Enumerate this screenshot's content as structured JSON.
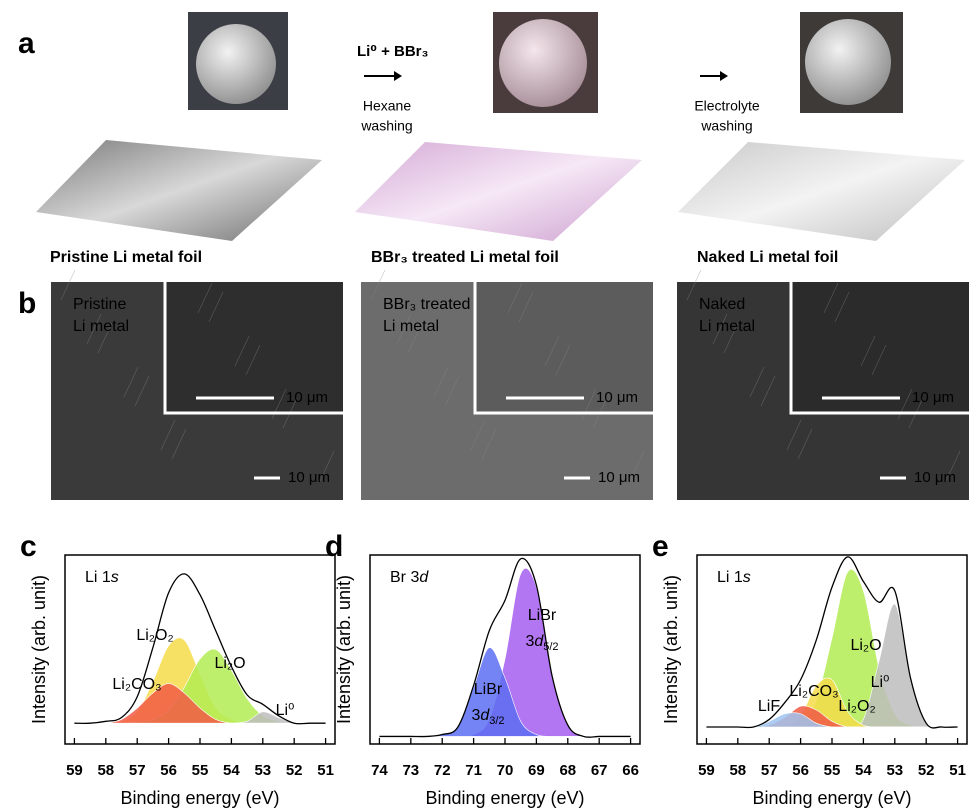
{
  "panel_a": {
    "label": "a",
    "reagent": "Li⁰ + BBr₃",
    "steps": [
      [
        "Hexane",
        "washing"
      ],
      [
        "Electrolyte",
        "washing"
      ]
    ],
    "captions": [
      "Pristine Li metal foil",
      "BBr₃ treated Li metal foil",
      "Naked Li metal foil"
    ]
  },
  "panel_b": {
    "label": "b",
    "images": [
      {
        "label": [
          "Pristine",
          "Li metal"
        ],
        "inset_scale_bar": "10 μm",
        "scale_bar": "10 μm"
      },
      {
        "label": [
          "BBr₃ treated",
          "Li metal"
        ],
        "inset_scale_bar": "10 μm",
        "scale_bar": "10 μm"
      },
      {
        "label": [
          "Naked",
          "Li metal"
        ],
        "inset_scale_bar": "10 μm",
        "scale_bar": "10 μm"
      }
    ]
  },
  "chart_data": [
    {
      "type": "area",
      "panel_label": "c",
      "title": [
        "Li 1",
        "s"
      ],
      "xlabel": "Binding energy (eV)",
      "ylabel": "Intensity (arb. unit)",
      "xlim": [
        59.3,
        50.7
      ],
      "xticks": [
        59,
        58,
        57,
        56,
        55,
        54,
        53,
        52,
        51
      ],
      "ylim": [
        0,
        1
      ],
      "baseline": 0.11,
      "x": [
        59,
        58.5,
        58,
        57.5,
        57,
        56.5,
        56,
        55.5,
        55,
        54.5,
        54,
        53.5,
        53,
        52.5,
        52,
        51.5,
        51
      ],
      "series": [
        {
          "name": "Li₂O₂",
          "color": "#f5dc4a",
          "fill": true,
          "values": [
            0.11,
            0.11,
            0.11,
            0.12,
            0.17,
            0.33,
            0.52,
            0.55,
            0.37,
            0.19,
            0.13,
            0.11,
            0.11,
            0.11,
            0.11,
            0.11,
            0.11
          ]
        },
        {
          "name": "Li₂O",
          "color": "#b2ec52",
          "fill": true,
          "values": [
            0.11,
            0.11,
            0.11,
            0.11,
            0.12,
            0.13,
            0.18,
            0.3,
            0.45,
            0.5,
            0.39,
            0.24,
            0.15,
            0.12,
            0.11,
            0.11,
            0.11
          ]
        },
        {
          "name": "Li⁰",
          "color": "#bdbdbd",
          "fill": true,
          "values": [
            0.11,
            0.11,
            0.11,
            0.11,
            0.11,
            0.11,
            0.11,
            0.11,
            0.11,
            0.11,
            0.11,
            0.12,
            0.17,
            0.14,
            0.11,
            0.11,
            0.11
          ]
        },
        {
          "name": "Li₂CO₃",
          "color": "#f15a45",
          "fill": true,
          "values": [
            0.11,
            0.11,
            0.11,
            0.13,
            0.19,
            0.27,
            0.32,
            0.27,
            0.19,
            0.13,
            0.11,
            0.11,
            0.11,
            0.11,
            0.11,
            0.11,
            0.11
          ]
        },
        {
          "color": "#000000",
          "fill": false,
          "values": [
            0.11,
            0.11,
            0.12,
            0.14,
            0.25,
            0.51,
            0.8,
            0.9,
            0.79,
            0.6,
            0.41,
            0.26,
            0.21,
            0.15,
            0.11,
            0.11,
            0.11
          ]
        }
      ]
    },
    {
      "type": "area",
      "panel_label": "d",
      "title": [
        "Br 3",
        "d"
      ],
      "xlabel": "Binding energy (eV)",
      "ylabel": "Intensity (arb. unit)",
      "xlim": [
        74.3,
        65.7
      ],
      "xticks": [
        74,
        73,
        72,
        71,
        70,
        69,
        68,
        67,
        66
      ],
      "ylim": [
        0,
        1
      ],
      "baseline": 0.04,
      "x": [
        74,
        73.5,
        73,
        72.5,
        72,
        71.5,
        71,
        70.5,
        70,
        69.5,
        69,
        68.5,
        68,
        67.5,
        67,
        66.5,
        66
      ],
      "series": [
        {
          "name": [
            "LiBr",
            "3",
            "d",
            "5/2"
          ],
          "color": "#a45ef0",
          "fill": true,
          "values": [
            0.04,
            0.04,
            0.04,
            0.04,
            0.04,
            0.04,
            0.05,
            0.13,
            0.45,
            0.9,
            0.83,
            0.36,
            0.1,
            0.04,
            0.04,
            0.04,
            0.04
          ]
        },
        {
          "name": [
            "LiBr",
            "3",
            "d",
            "3/2"
          ],
          "color": "#5d6ff2",
          "fill": true,
          "values": [
            0.04,
            0.04,
            0.04,
            0.04,
            0.05,
            0.09,
            0.3,
            0.51,
            0.35,
            0.12,
            0.05,
            0.04,
            0.04,
            0.04,
            0.04,
            0.04,
            0.04
          ]
        },
        {
          "color": "#000000",
          "fill": false,
          "values": [
            0.04,
            0.04,
            0.04,
            0.04,
            0.05,
            0.09,
            0.31,
            0.6,
            0.76,
            0.98,
            0.84,
            0.36,
            0.1,
            0.04,
            0.04,
            0.04,
            0.04
          ]
        }
      ]
    },
    {
      "type": "area",
      "panel_label": "e",
      "title": [
        "Li 1",
        "s"
      ],
      "xlabel": "Binding energy (eV)",
      "ylabel": "Intensity (arb. unit)",
      "xlim": [
        59.3,
        50.7
      ],
      "xticks": [
        59,
        58,
        57,
        56,
        55,
        54,
        53,
        52,
        51
      ],
      "ylim": [
        0,
        1
      ],
      "baseline": 0.09,
      "x": [
        59,
        58.5,
        58,
        57.5,
        57,
        56.5,
        56,
        55.5,
        55,
        54.5,
        54,
        53.5,
        53,
        52.5,
        52,
        51.5,
        51
      ],
      "series": [
        {
          "name": "Li₂O",
          "color": "#b2ec52",
          "fill": true,
          "values": [
            0.09,
            0.09,
            0.09,
            0.09,
            0.09,
            0.09,
            0.11,
            0.23,
            0.56,
            0.91,
            0.81,
            0.4,
            0.16,
            0.1,
            0.09,
            0.09,
            0.09
          ]
        },
        {
          "name": "Li⁰",
          "color": "#bdbdbd",
          "fill": true,
          "values": [
            0.09,
            0.09,
            0.09,
            0.09,
            0.09,
            0.09,
            0.09,
            0.09,
            0.09,
            0.09,
            0.13,
            0.44,
            0.74,
            0.35,
            0.11,
            0.09,
            0.09
          ]
        },
        {
          "name": "Li₂O₂",
          "color": "#f5dc4a",
          "fill": true,
          "values": [
            0.09,
            0.09,
            0.09,
            0.09,
            0.09,
            0.09,
            0.15,
            0.31,
            0.34,
            0.17,
            0.1,
            0.09,
            0.09,
            0.09,
            0.09,
            0.09,
            0.09
          ]
        },
        {
          "name": "Li₂CO₃",
          "color": "#f15a45",
          "fill": true,
          "values": [
            0.09,
            0.09,
            0.09,
            0.09,
            0.1,
            0.14,
            0.2,
            0.18,
            0.12,
            0.09,
            0.09,
            0.09,
            0.09,
            0.09,
            0.09,
            0.09,
            0.09
          ]
        },
        {
          "name": "LiF",
          "color": "#9fc3f0",
          "fill": true,
          "values": [
            0.09,
            0.09,
            0.09,
            0.09,
            0.12,
            0.16,
            0.16,
            0.11,
            0.09,
            0.09,
            0.09,
            0.09,
            0.09,
            0.09,
            0.09,
            0.09,
            0.09
          ]
        },
        {
          "color": "#000000",
          "fill": false,
          "values": [
            0.09,
            0.09,
            0.09,
            0.09,
            0.13,
            0.22,
            0.34,
            0.55,
            0.83,
            0.99,
            0.86,
            0.75,
            0.81,
            0.35,
            0.11,
            0.09,
            0.09
          ]
        }
      ]
    }
  ]
}
